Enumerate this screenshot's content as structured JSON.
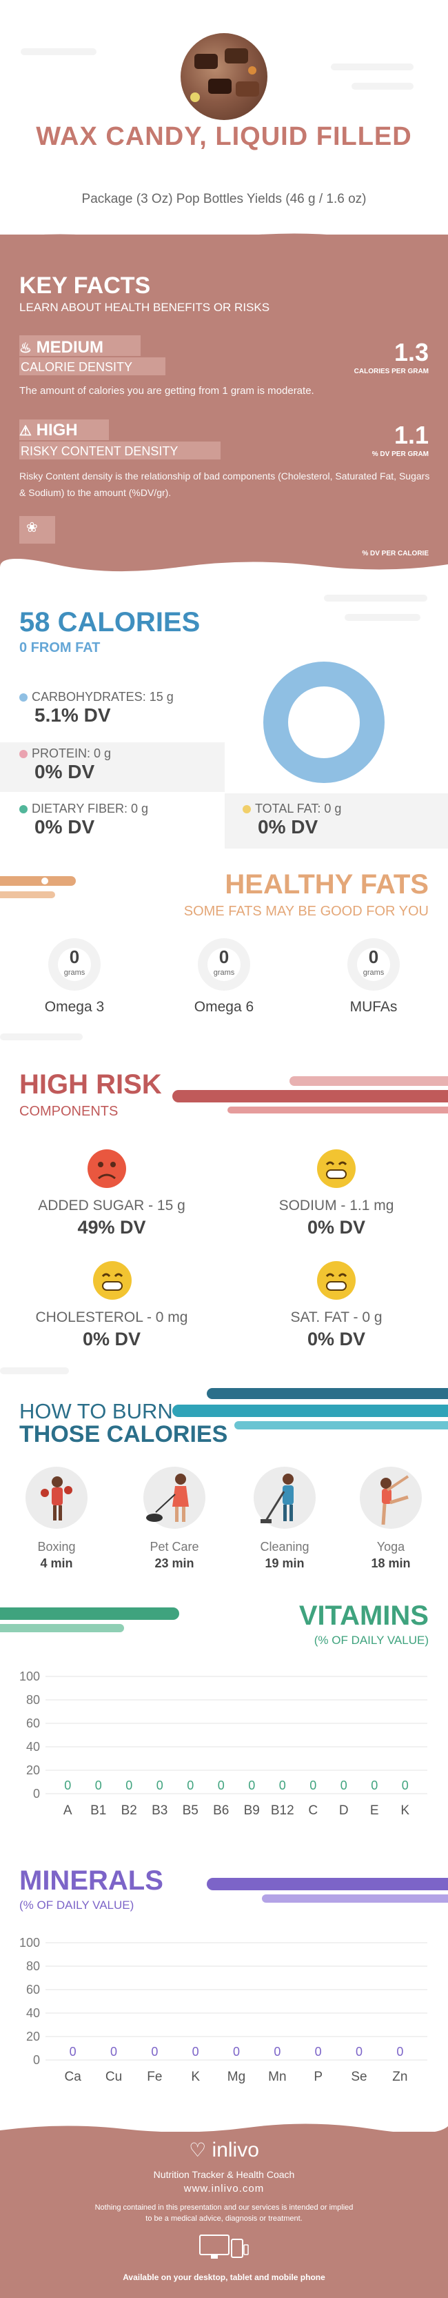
{
  "header": {
    "title": "WAX CANDY, LIQUID FILLED",
    "subtitle": "Package (3 Oz) Pop Bottles Yields (46 g / 1.6 oz)"
  },
  "key_facts": {
    "title": "KEY FACTS",
    "subtitle": "LEARN ABOUT HEALTH BENEFITS OR RISKS",
    "calorie_density": {
      "level": "MEDIUM",
      "label": "CALORIE DENSITY",
      "value": "1.3",
      "unit": "CALORIES PER GRAM",
      "description": "The amount of calories you are getting from 1 gram is moderate."
    },
    "risky_density": {
      "level": "HIGH",
      "label": "RISKY CONTENT DENSITY",
      "value": "1.1",
      "unit": "% DV PER GRAM",
      "description": "Risky Content density is the relationship of bad components (Cholesterol, Saturated Fat, Sugars & Sodium) to the amount (%DV/gr)."
    },
    "third_unit": "% DV PER CALORIE"
  },
  "calories": {
    "title": "58 CALORIES",
    "from_fat": "0 FROM FAT",
    "carbs_label": "CARBOHYDRATES: 15 g",
    "carbs_dv": "5.1% DV",
    "protein_label": "PROTEIN: 0 g",
    "protein_dv": "0% DV",
    "fiber_label": "DIETARY FIBER: 0 g",
    "fiber_dv": "0% DV",
    "fat_label": "TOTAL FAT: 0 g",
    "fat_dv": "0% DV"
  },
  "healthy_fats": {
    "title": "HEALTHY FATS",
    "subtitle": "SOME FATS MAY BE GOOD FOR YOU",
    "unit": "grams",
    "items": [
      {
        "value": "0",
        "name": "Omega 3"
      },
      {
        "value": "0",
        "name": "Omega 6"
      },
      {
        "value": "0",
        "name": "MUFAs"
      }
    ]
  },
  "high_risk": {
    "title": "HIGH RISK",
    "subtitle": "COMPONENTS",
    "items": [
      {
        "label": "ADDED SUGAR - 15 g",
        "dv": "49% DV"
      },
      {
        "label": "SODIUM - 1.1 mg",
        "dv": "0% DV"
      },
      {
        "label": "CHOLESTEROL - 0 mg",
        "dv": "0% DV"
      },
      {
        "label": "SAT. FAT - 0 g",
        "dv": "0% DV"
      }
    ]
  },
  "burn": {
    "title_line1": "HOW TO BURN",
    "title_line2": "THOSE CALORIES",
    "activities": [
      {
        "name": "Boxing",
        "minutes": "4 min"
      },
      {
        "name": "Pet Care",
        "minutes": "23 min"
      },
      {
        "name": "Cleaning",
        "minutes": "19 min"
      },
      {
        "name": "Yoga",
        "minutes": "18 min"
      }
    ]
  },
  "vitamins_header": {
    "title": "VITAMINS",
    "subtitle": "(% OF DAILY VALUE)"
  },
  "minerals_header": {
    "title": "MINERALS",
    "subtitle": "(% OF DAILY VALUE)"
  },
  "chart_data": [
    {
      "type": "bar",
      "title": "VITAMINS",
      "subtitle": "(% OF DAILY VALUE)",
      "categories": [
        "A",
        "B1",
        "B2",
        "B3",
        "B5",
        "B6",
        "B9",
        "B12",
        "C",
        "D",
        "E",
        "K"
      ],
      "values": [
        0,
        0,
        0,
        0,
        0,
        0,
        0,
        0,
        0,
        0,
        0,
        0
      ],
      "yticks": [
        "0",
        "20",
        "40",
        "60",
        "80",
        "100"
      ],
      "ylim": [
        0,
        100
      ],
      "color": "#3fa37e",
      "grid": true
    },
    {
      "type": "bar",
      "title": "MINERALS",
      "subtitle": "(% OF DAILY VALUE)",
      "categories": [
        "Ca",
        "Cu",
        "Fe",
        "K",
        "Mg",
        "Mn",
        "P",
        "Se",
        "Zn"
      ],
      "values": [
        0,
        0,
        0,
        0,
        0,
        0,
        0,
        0,
        0
      ],
      "yticks": [
        "0",
        "20",
        "40",
        "60",
        "80",
        "100"
      ],
      "ylim": [
        0,
        100
      ],
      "color": "#7c64c8",
      "grid": true
    }
  ],
  "footer": {
    "brand": "inlivo",
    "tagline": "Nutrition Tracker & Health Coach",
    "url": "www.inlivo.com",
    "disclaimer1": "Nothing contained in this presentation and our services is intended or implied",
    "disclaimer2": "to be a medical advice, diagnosis or treatment.",
    "devices": "Available on your desktop, tablet and mobile phone"
  },
  "colors": {
    "brand": "#bb8279",
    "calories": "#3f8fbf",
    "healthy_fats": "#e4a778",
    "high_risk": "#c05a5a",
    "burn": "#2b6f8a",
    "vitamins": "#3fa37e",
    "minerals": "#7c64c8"
  }
}
